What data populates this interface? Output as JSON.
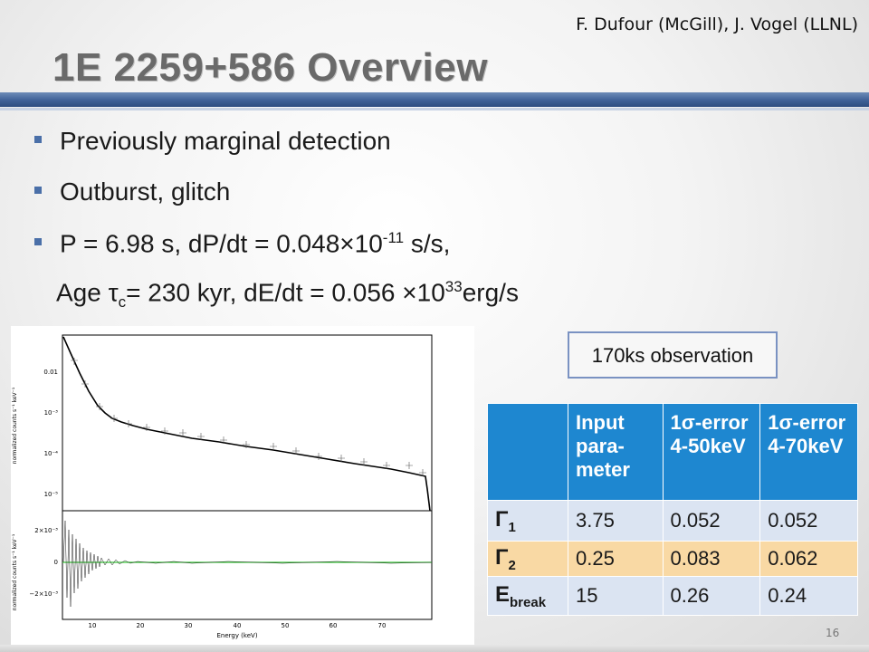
{
  "header": {
    "authors": "F. Dufour (McGill), J. Vogel (LLNL)",
    "title": "1E 2259+586 Overview"
  },
  "bullets": {
    "b1": "Previously marginal detection",
    "b2": "Outburst, glitch",
    "b3_pre": "P = 6.98 s, dP/dt = 0.048×10",
    "b3_exp": "-11",
    "b3_post": " s/s,",
    "age_pre": "Age τ",
    "age_sub": "c",
    "age_mid": "= 230 kyr, dE/dt = 0.056 ×10",
    "age_exp": "33",
    "age_post": "erg/s"
  },
  "observation": "170ks observation",
  "table": {
    "headers": [
      "",
      "Input para-meter",
      "1σ-error 4-50keV",
      "1σ-error 4-70keV"
    ],
    "rows": [
      {
        "sym": "Γ",
        "sub": "1",
        "input": "3.75",
        "err50": "0.052",
        "err70": "0.052"
      },
      {
        "sym": "Γ",
        "sub": "2",
        "input": "0.25",
        "err50": "0.083",
        "err70": "0.062"
      },
      {
        "sym": "E",
        "sub": "break",
        "input": "15",
        "err50": "0.26",
        "err70": "0.24"
      }
    ]
  },
  "plot": {
    "ylabel_top": "normalized counts s⁻¹ keV⁻¹",
    "ylabel_bottom": "normalized counts s⁻¹ keV⁻¹",
    "xlabel": "Energy (keV)",
    "top_ticks": [
      "0.01",
      "10⁻³",
      "10⁻⁴",
      "10⁻⁵"
    ],
    "bottom_ticks": [
      "2×10⁻³",
      "0",
      "−2×10⁻³"
    ],
    "x_ticks": [
      "10",
      "20",
      "30",
      "40",
      "50",
      "60",
      "70"
    ],
    "model_color": "#000000",
    "residual_zero_color": "#3cc83c"
  },
  "page_number": "16",
  "accent_colors": {
    "title_bar": "#3f6197",
    "table_header": "#1e87d0",
    "row_highlight": "#f9d9a4"
  }
}
